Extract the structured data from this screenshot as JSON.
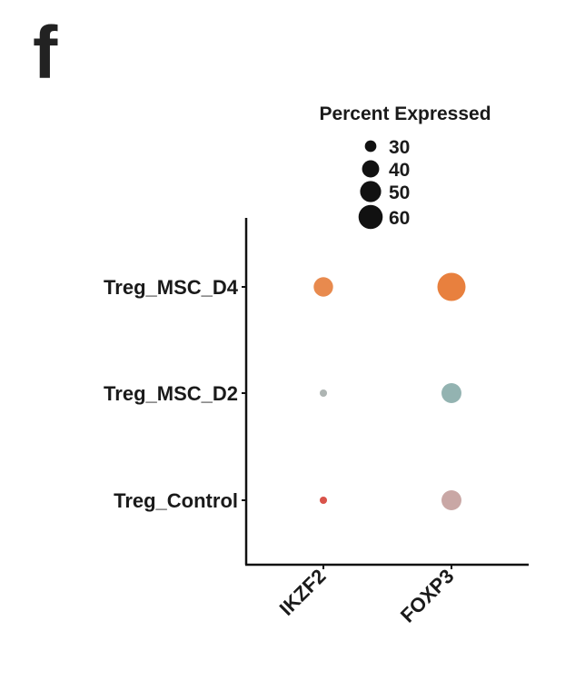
{
  "panel_label": "f",
  "chart_data": {
    "type": "dot",
    "title": "",
    "xlabel": "",
    "ylabel": "",
    "x_categories": [
      "IKZF2",
      "FOXP3"
    ],
    "y_categories": [
      "Treg_Control",
      "Treg_MSC_D2",
      "Treg_MSC_D4"
    ],
    "size_legend": {
      "title": "Percent Expressed",
      "values": [
        30,
        40,
        50,
        60
      ],
      "labels": [
        "30",
        "40",
        "50",
        "60"
      ]
    },
    "points": [
      {
        "x": "IKZF2",
        "y": "Treg_MSC_D4",
        "percent_expressed": 41,
        "color": "#E88A4E"
      },
      {
        "x": "FOXP3",
        "y": "Treg_MSC_D4",
        "percent_expressed": 63,
        "color": "#E8803E"
      },
      {
        "x": "IKZF2",
        "y": "Treg_MSC_D2",
        "percent_expressed": 26,
        "color": "#AEB5B3"
      },
      {
        "x": "FOXP3",
        "y": "Treg_MSC_D2",
        "percent_expressed": 42,
        "color": "#93B3B1"
      },
      {
        "x": "IKZF2",
        "y": "Treg_Control",
        "percent_expressed": 26,
        "color": "#D9534A"
      },
      {
        "x": "FOXP3",
        "y": "Treg_Control",
        "percent_expressed": 42,
        "color": "#C9A7A5"
      }
    ]
  }
}
